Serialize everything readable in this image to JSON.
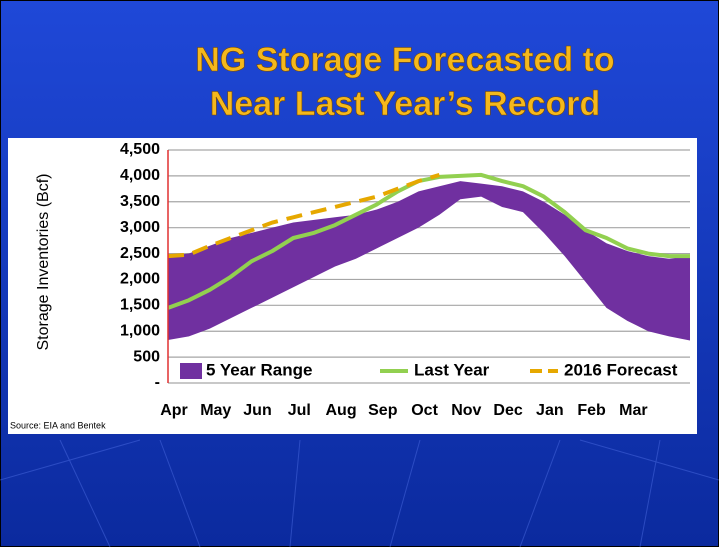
{
  "chart_data": {
    "type": "line",
    "title": [
      "NG Storage Forecasted to",
      "Near Last Year’s Record"
    ],
    "ylabel": "Storage Inventories (Bcf)",
    "source": "Source: EIA and Bentek",
    "categories": [
      "Apr",
      null,
      "May",
      null,
      "Jun",
      null,
      "Jul",
      null,
      "Aug",
      null,
      "Sep",
      null,
      "Oct",
      null,
      "Nov",
      null,
      "Dec",
      null,
      "Jan",
      null,
      "Feb",
      null,
      "Mar",
      null,
      null,
      null
    ],
    "ylim": [
      0,
      4500
    ],
    "yticks": [
      {
        "value": 0,
        "label": "-"
      },
      500,
      {
        "value": 1000,
        "label": "1,000"
      },
      {
        "value": 1500,
        "label": "1,500"
      },
      {
        "value": 2000,
        "label": "2,000"
      },
      {
        "value": 2500,
        "label": "2,500"
      },
      {
        "value": 3000,
        "label": "3,000"
      },
      {
        "value": 3500,
        "label": "3,500"
      },
      {
        "value": 4000,
        "label": "4,000"
      },
      {
        "value": 4500,
        "label": "4,500"
      }
    ],
    "grid": true,
    "series": [
      {
        "name": "5 Year Range",
        "color": "#7030a0",
        "kind": "range",
        "low": [
          830,
          900,
          1050,
          1250,
          1450,
          1650,
          1850,
          2050,
          2250,
          2400,
          2600,
          2800,
          3000,
          3250,
          3550,
          3600,
          3400,
          3300,
          2900,
          2450,
          1950,
          1450,
          1200,
          1000,
          900,
          820
        ],
        "values": [
          2450,
          2500,
          2650,
          2800,
          2900,
          3000,
          3100,
          3150,
          3200,
          3250,
          3350,
          3500,
          3700,
          3800,
          3900,
          3850,
          3800,
          3700,
          3500,
          3250,
          2950,
          2700,
          2550,
          2450,
          2400,
          2450
        ]
      },
      {
        "name": "Last Year",
        "color": "#92d050",
        "kind": "line",
        "values": [
          1450,
          1600,
          1800,
          2050,
          2350,
          2550,
          2800,
          2900,
          3050,
          3250,
          3450,
          3700,
          3900,
          3980,
          4000,
          4020,
          3900,
          3800,
          3600,
          3300,
          2950,
          2800,
          2600,
          2500,
          2450,
          2450
        ]
      },
      {
        "name": "2016 Forecast",
        "color": "#e6a800",
        "kind": "dash",
        "values": [
          2450,
          2480,
          2650,
          2800,
          2950,
          3100,
          3200,
          3300,
          3400,
          3500,
          3600,
          3750,
          3900,
          4020,
          null,
          null,
          null,
          null,
          null,
          null,
          null,
          null,
          null,
          null,
          null,
          null
        ]
      }
    ]
  }
}
